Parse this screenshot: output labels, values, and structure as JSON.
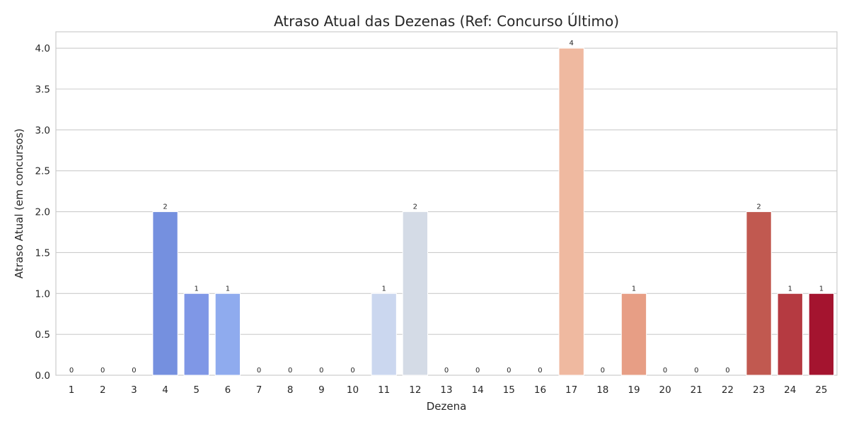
{
  "chart_data": {
    "type": "bar",
    "title": "Atraso Atual das Dezenas (Ref: Concurso Último)",
    "xlabel": "Dezena",
    "ylabel": "Atraso Atual (em concursos)",
    "categories": [
      "1",
      "2",
      "3",
      "4",
      "5",
      "6",
      "7",
      "8",
      "9",
      "10",
      "11",
      "12",
      "13",
      "14",
      "15",
      "16",
      "17",
      "18",
      "19",
      "20",
      "21",
      "22",
      "23",
      "24",
      "25"
    ],
    "values": [
      0,
      0,
      0,
      2,
      1,
      1,
      0,
      0,
      0,
      0,
      1,
      2,
      0,
      0,
      0,
      0,
      4,
      0,
      1,
      0,
      0,
      0,
      2,
      1,
      1
    ],
    "data_labels": [
      "0",
      "0",
      "0",
      "2",
      "1",
      "1",
      "0",
      "0",
      "0",
      "0",
      "1",
      "2",
      "0",
      "0",
      "0",
      "0",
      "4",
      "0",
      "1",
      "0",
      "0",
      "0",
      "2",
      "1",
      "1"
    ],
    "ylim": [
      0,
      4.2
    ],
    "yticks": [
      0.0,
      0.5,
      1.0,
      1.5,
      2.0,
      2.5,
      3.0,
      3.5,
      4.0
    ],
    "ytick_labels": [
      "0.0",
      "0.5",
      "1.0",
      "1.5",
      "2.0",
      "2.5",
      "3.0",
      "3.5",
      "4.0"
    ],
    "grid": true,
    "palette": "coolwarm",
    "colors": [
      "#4a5fd1",
      "#5672dc",
      "#6384e5",
      "#7590df",
      "#7f97e6",
      "#8fabee",
      "#9fbbf1",
      "#adc6f4",
      "#bcd2f6",
      "#c4d5f3",
      "#cbd7ef",
      "#d4dbe6",
      "#e0d9d2",
      "#e8cfbf",
      "#efc3ae",
      "#f1b9a0",
      "#efb9a0",
      "#eca88e",
      "#e79e85",
      "#de8a70",
      "#d4735d",
      "#cb6353",
      "#c15950",
      "#b53a41",
      "#a4142f"
    ]
  }
}
